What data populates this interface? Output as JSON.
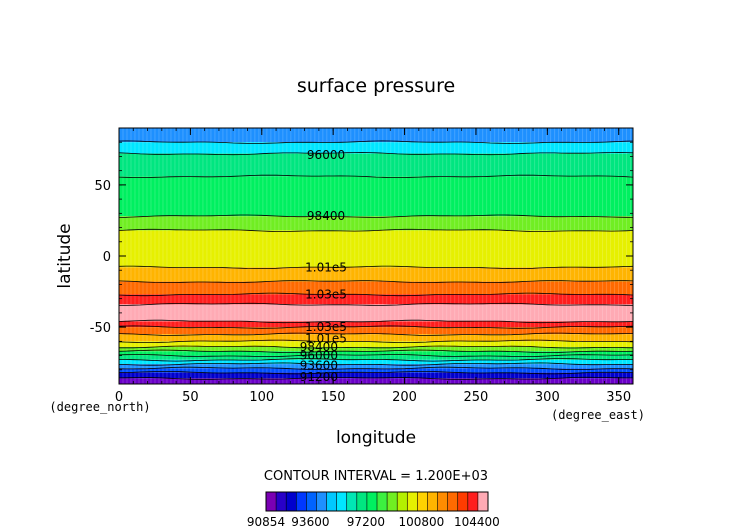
{
  "chart_data": {
    "type": "heatmap",
    "title": "surface pressure",
    "xlabel": "longitude",
    "ylabel": "latitude",
    "x_unit": "(degree_east)",
    "y_unit": "(degree_north)",
    "xlim": [
      0,
      360
    ],
    "ylim": [
      -90,
      90
    ],
    "x_ticks": [
      0,
      50,
      100,
      150,
      200,
      250,
      300,
      350
    ],
    "y_ticks": [
      -50,
      0,
      50
    ],
    "contour_interval_text": "CONTOUR INTERVAL = 1.200E+03",
    "contour_labels": [
      {
        "text": "96000",
        "lon": 145,
        "lat": 71
      },
      {
        "text": "98400",
        "lon": 145,
        "lat": 28
      },
      {
        "text": "1.01e5",
        "lon": 145,
        "lat": -8
      },
      {
        "text": "1.03e5",
        "lon": 145,
        "lat": -27
      },
      {
        "text": "1.03e5",
        "lon": 145,
        "lat": -50
      },
      {
        "text": "1.01e5",
        "lon": 145,
        "lat": -58
      },
      {
        "text": "98400",
        "lon": 140,
        "lat": -64
      },
      {
        "text": "96000",
        "lon": 140,
        "lat": -70
      },
      {
        "text": "93600",
        "lon": 140,
        "lat": -77
      },
      {
        "text": "91200",
        "lon": 140,
        "lat": -85
      }
    ],
    "bands": [
      {
        "lat_top": 90,
        "lat_bottom": 80,
        "color": "#1e90ff"
      },
      {
        "lat_top": 80,
        "lat_bottom": 72,
        "color": "#00e6ff"
      },
      {
        "lat_top": 72,
        "lat_bottom": 56,
        "color": "#00e680"
      },
      {
        "lat_top": 56,
        "lat_bottom": 28,
        "color": "#00f060"
      },
      {
        "lat_top": 28,
        "lat_bottom": 18,
        "color": "#70ee22"
      },
      {
        "lat_top": 18,
        "lat_bottom": -8,
        "color": "#e6f000"
      },
      {
        "lat_top": -8,
        "lat_bottom": -18,
        "color": "#ffb400"
      },
      {
        "lat_top": -18,
        "lat_bottom": -27,
        "color": "#ff6a00"
      },
      {
        "lat_top": -27,
        "lat_bottom": -34,
        "color": "#ff1e1e"
      },
      {
        "lat_top": -34,
        "lat_bottom": -46,
        "color": "#ffaab4"
      },
      {
        "lat_top": -46,
        "lat_bottom": -50,
        "color": "#ff1e1e"
      },
      {
        "lat_top": -50,
        "lat_bottom": -55,
        "color": "#ff6a00"
      },
      {
        "lat_top": -55,
        "lat_bottom": -60,
        "color": "#ffb400"
      },
      {
        "lat_top": -60,
        "lat_bottom": -64,
        "color": "#e6f000"
      },
      {
        "lat_top": -64,
        "lat_bottom": -67,
        "color": "#70ee22"
      },
      {
        "lat_top": -67,
        "lat_bottom": -70,
        "color": "#00f060"
      },
      {
        "lat_top": -70,
        "lat_bottom": -73,
        "color": "#00e680"
      },
      {
        "lat_top": -73,
        "lat_bottom": -76,
        "color": "#00e6ff"
      },
      {
        "lat_top": -76,
        "lat_bottom": -79,
        "color": "#1e90ff"
      },
      {
        "lat_top": -79,
        "lat_bottom": -82,
        "color": "#0050ff"
      },
      {
        "lat_top": -82,
        "lat_bottom": -86,
        "color": "#0000cd"
      },
      {
        "lat_top": -86,
        "lat_bottom": -90,
        "color": "#6a00c8"
      }
    ],
    "colorbar": {
      "colors": [
        "#7a00b4",
        "#2800c8",
        "#0000cd",
        "#0038ff",
        "#0064ff",
        "#1e90ff",
        "#00c8ff",
        "#00e6ff",
        "#00e6b4",
        "#00e680",
        "#00f060",
        "#3cf040",
        "#70ee22",
        "#b4f000",
        "#e6f000",
        "#ffd200",
        "#ffb400",
        "#ff8c00",
        "#ff6a00",
        "#ff3c00",
        "#ff1e1e",
        "#ffaab4"
      ],
      "labels": [
        "90854",
        "93600",
        "97200",
        "100800",
        "104400"
      ],
      "label_positions": [
        0.0,
        0.2,
        0.45,
        0.7,
        0.95
      ]
    }
  }
}
